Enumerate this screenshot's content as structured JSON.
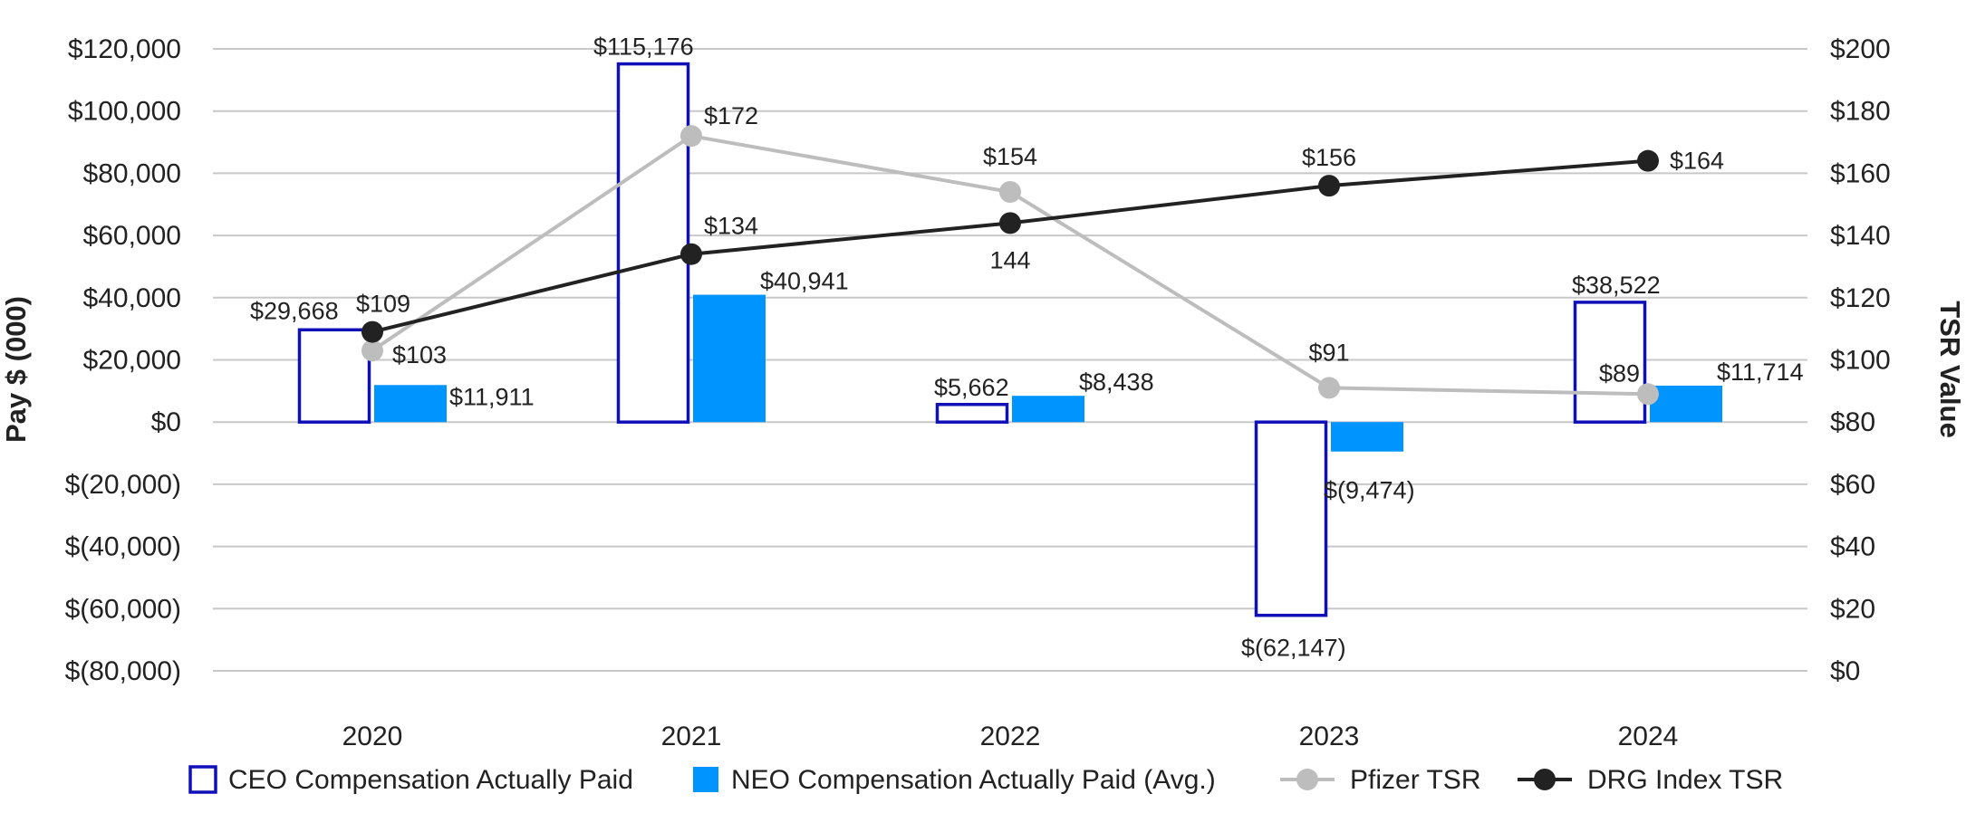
{
  "chart_data": {
    "type": "bar",
    "categories": [
      "2020",
      "2021",
      "2022",
      "2023",
      "2024"
    ],
    "ylabel": "Pay $ (000)",
    "y2label": "TSR Value",
    "ylim": [
      -80000,
      120000
    ],
    "y2lim": [
      0,
      200
    ],
    "y_ticks": [
      {
        "value": 120000,
        "label": "$120,000"
      },
      {
        "value": 100000,
        "label": "$100,000"
      },
      {
        "value": 80000,
        "label": "$80,000"
      },
      {
        "value": 60000,
        "label": "$60,000"
      },
      {
        "value": 40000,
        "label": "$40,000"
      },
      {
        "value": 20000,
        "label": "$20,000"
      },
      {
        "value": 0,
        "label": "$0"
      },
      {
        "value": -20000,
        "label": "$(20,000)"
      },
      {
        "value": -40000,
        "label": "$(40,000)"
      },
      {
        "value": -60000,
        "label": "$(60,000)"
      },
      {
        "value": -80000,
        "label": "$(80,000)"
      }
    ],
    "y2_ticks": [
      {
        "value": 200,
        "label": "$200"
      },
      {
        "value": 180,
        "label": "$180"
      },
      {
        "value": 160,
        "label": "$160"
      },
      {
        "value": 140,
        "label": "$140"
      },
      {
        "value": 120,
        "label": "$120"
      },
      {
        "value": 100,
        "label": "$100"
      },
      {
        "value": 80,
        "label": "$80"
      },
      {
        "value": 60,
        "label": "$60"
      },
      {
        "value": 40,
        "label": "$40"
      },
      {
        "value": 20,
        "label": "$20"
      },
      {
        "value": 0,
        "label": "$0"
      }
    ],
    "grid": true,
    "legend_position": "bottom",
    "series": [
      {
        "name": "CEO Compensation Actually Paid",
        "kind": "bar",
        "axis": "left",
        "style": "outline",
        "color": "#1010B8",
        "values": [
          29668,
          115176,
          5662,
          -62147,
          38522
        ],
        "labels": [
          "$29,668",
          "$115,176",
          "$5,662",
          "$(62,147)",
          "$38,522"
        ]
      },
      {
        "name": "NEO Compensation Actually Paid (Avg.)",
        "kind": "bar",
        "axis": "left",
        "style": "filled",
        "color": "#0094FF",
        "values": [
          11911,
          40941,
          8438,
          -9474,
          11714
        ],
        "labels": [
          "$11,911",
          "$40,941",
          "$8,438",
          "$(9,474)",
          "$11,714"
        ]
      },
      {
        "name": "Pfizer TSR",
        "kind": "line",
        "axis": "right",
        "color": "#BDBDBD",
        "values": [
          103,
          172,
          154,
          91,
          89
        ],
        "labels": [
          "$103",
          "$172",
          "$154",
          "$91",
          "$89"
        ]
      },
      {
        "name": "DRG Index TSR",
        "kind": "line",
        "axis": "right",
        "color": "#222222",
        "values": [
          109,
          134,
          144,
          156,
          164
        ],
        "labels": [
          "$109",
          "$134",
          "144",
          "$156",
          "$164"
        ]
      }
    ]
  }
}
